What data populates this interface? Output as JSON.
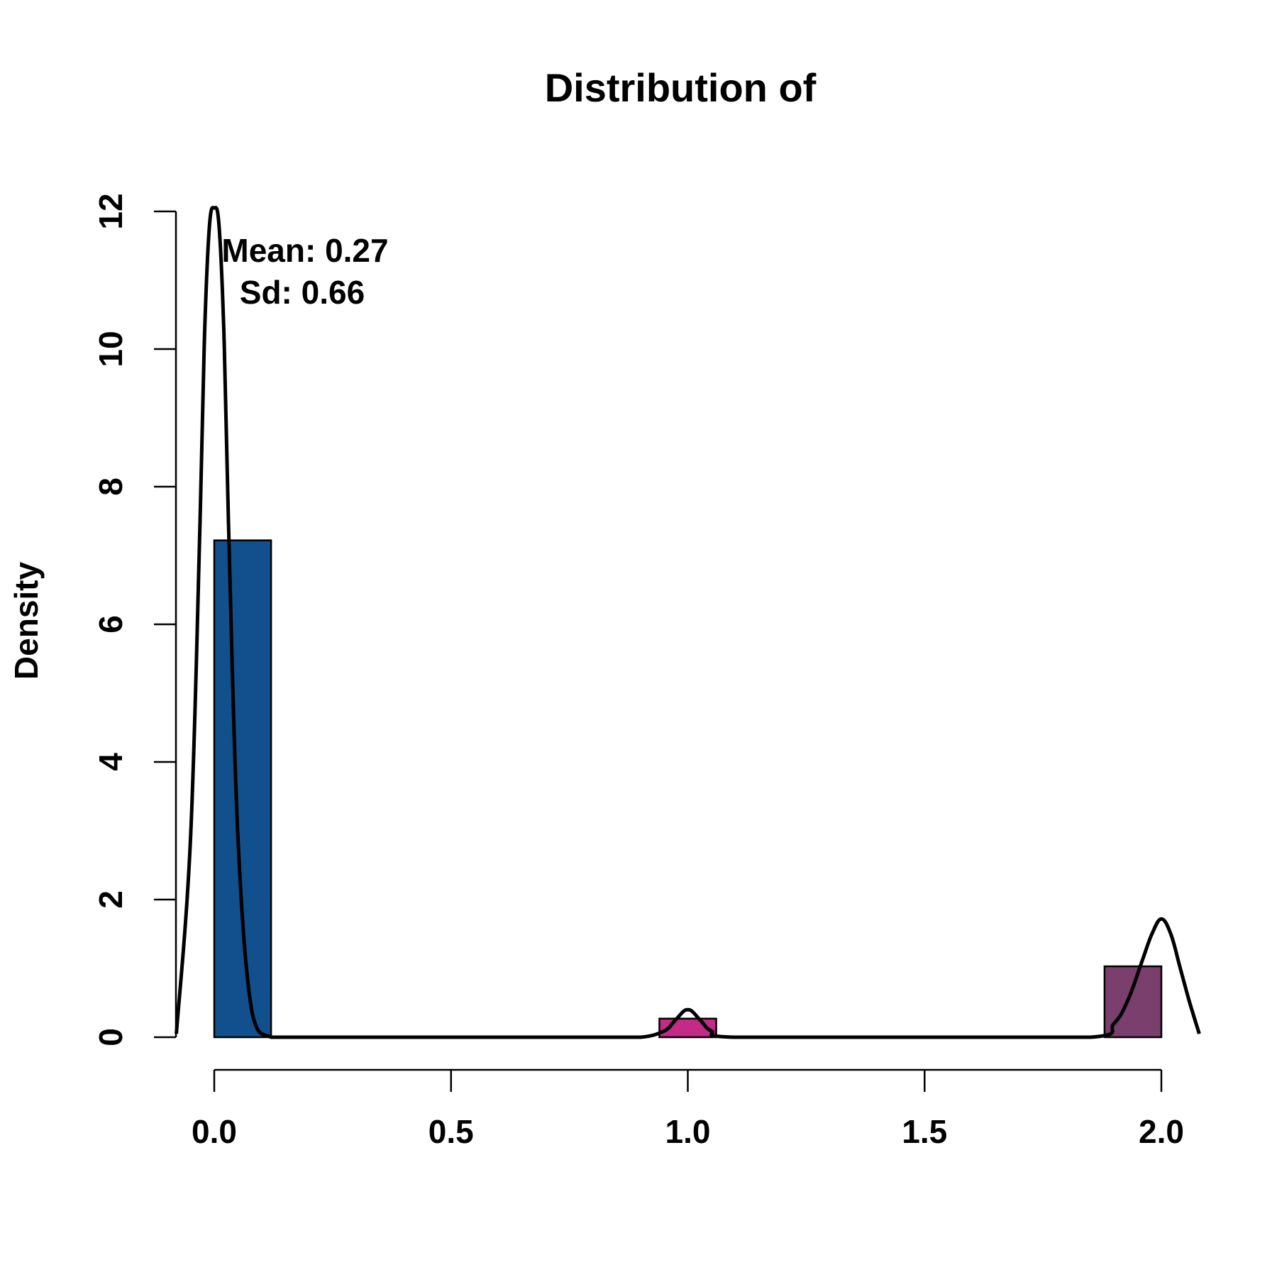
{
  "chart_data": {
    "type": "bar",
    "title": "Distribution of",
    "xlabel": "",
    "ylabel": "Density",
    "xlim": [
      -0.05,
      2.05
    ],
    "ylim": [
      0,
      12
    ],
    "x_ticks": [
      0.0,
      0.5,
      1.0,
      1.5,
      2.0
    ],
    "x_tick_labels": [
      "0.0",
      "0.5",
      "1.0",
      "1.5",
      "2.0"
    ],
    "y_ticks": [
      0,
      2,
      4,
      6,
      8,
      10,
      12
    ],
    "y_tick_labels": [
      "0",
      "2",
      "4",
      "6",
      "8",
      "10",
      "12"
    ],
    "grid": false,
    "legend": "none",
    "bars": [
      {
        "x_start": 0.0,
        "x_end": 0.12,
        "value": 7.22,
        "color": "#11508c"
      },
      {
        "x_start": 0.94,
        "x_end": 1.06,
        "value": 0.27,
        "color": "#c42b87"
      },
      {
        "x_start": 1.88,
        "x_end": 2.0,
        "value": 1.03,
        "color": "#7b3f6e"
      }
    ],
    "density_curve": {
      "x": [
        -0.08,
        -0.05,
        -0.03,
        -0.02,
        -0.01,
        0.0,
        0.01,
        0.02,
        0.03,
        0.05,
        0.08,
        0.12,
        0.2,
        0.5,
        0.8,
        0.9,
        0.95,
        0.97,
        0.99,
        1.0,
        1.01,
        1.03,
        1.05,
        1.1,
        1.5,
        1.85,
        1.9,
        1.93,
        1.96,
        1.98,
        2.0,
        2.02,
        2.04,
        2.06,
        2.08
      ],
      "y": [
        0.05,
        2.9,
        7.5,
        10.3,
        11.8,
        12.05,
        11.8,
        10.3,
        7.5,
        2.9,
        0.35,
        0.0,
        0.0,
        0.0,
        0.0,
        0.0,
        0.09,
        0.22,
        0.37,
        0.4,
        0.37,
        0.22,
        0.09,
        0.0,
        0.0,
        0.0,
        0.2,
        0.55,
        1.12,
        1.5,
        1.72,
        1.5,
        1.0,
        0.5,
        0.05
      ]
    },
    "annotations": [
      "Mean: 0.27",
      "Sd: 0.66"
    ]
  }
}
